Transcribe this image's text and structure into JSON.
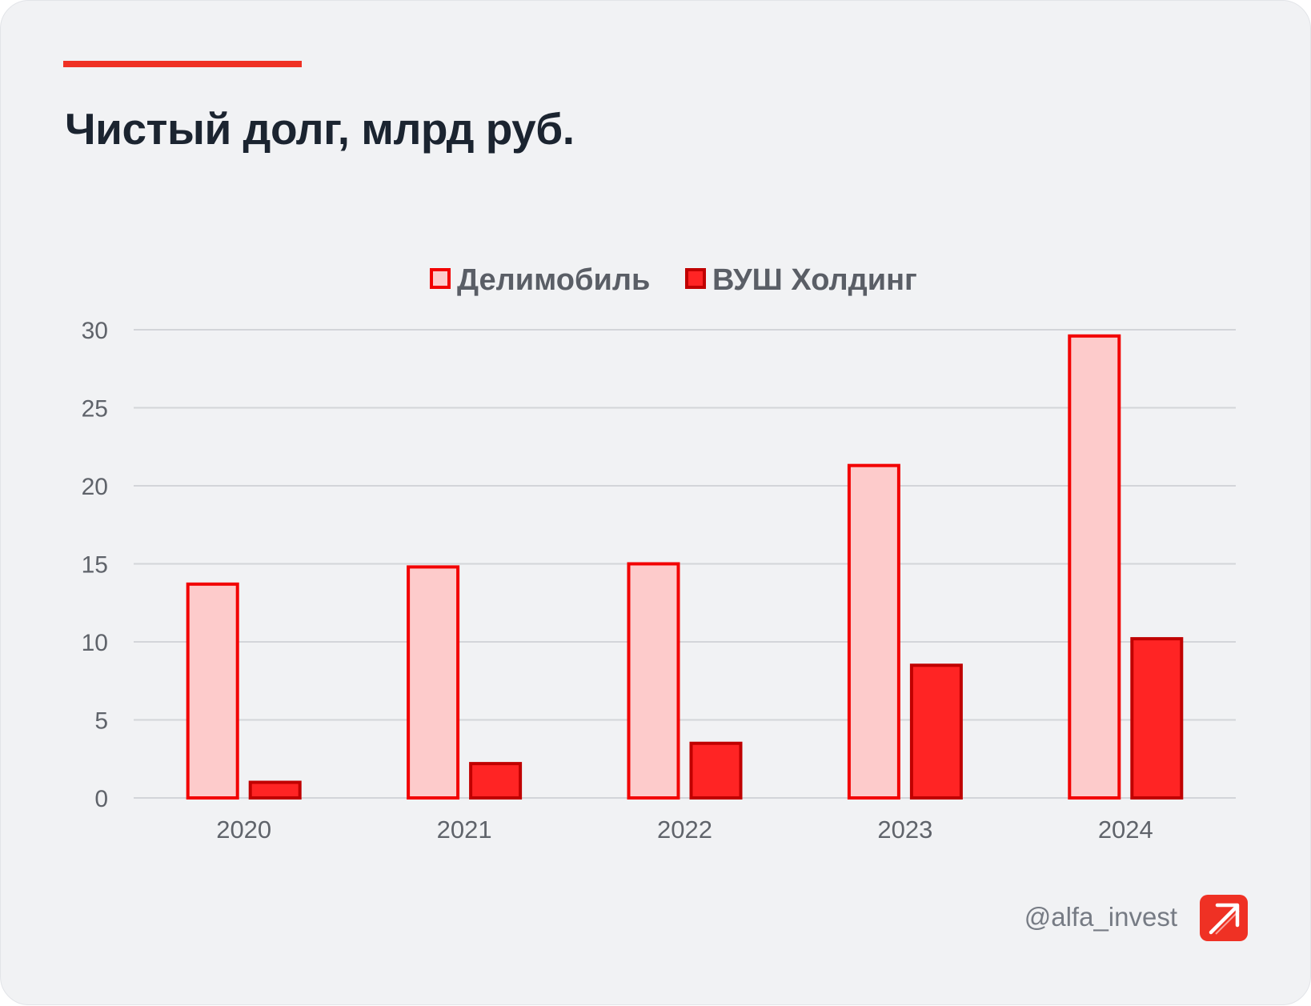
{
  "header": {
    "title": "Чистый долг, млрд руб."
  },
  "footer": {
    "handle": "@alfa_invest",
    "logo_icon": "alfa-arrow-logo-icon"
  },
  "colors": {
    "accent": "#ef3124",
    "delimobil_fill": "#fdcbcb",
    "delimobil_stroke": "#f20000",
    "vush_fill": "#ff2424",
    "vush_stroke": "#c00000"
  },
  "chart_data": {
    "type": "bar",
    "categories": [
      "2020",
      "2021",
      "2022",
      "2023",
      "2024"
    ],
    "series": [
      {
        "name": "Делимобиль",
        "values": [
          13.7,
          14.8,
          15.0,
          21.3,
          29.6
        ]
      },
      {
        "name": "ВУШ Холдинг",
        "values": [
          1.0,
          2.2,
          3.5,
          8.5,
          10.2
        ]
      }
    ],
    "ylim": [
      0,
      30
    ],
    "yticks": [
      "0",
      "5",
      "10",
      "15",
      "20",
      "25",
      "30"
    ],
    "grid": true,
    "legend_position": "top-center"
  }
}
